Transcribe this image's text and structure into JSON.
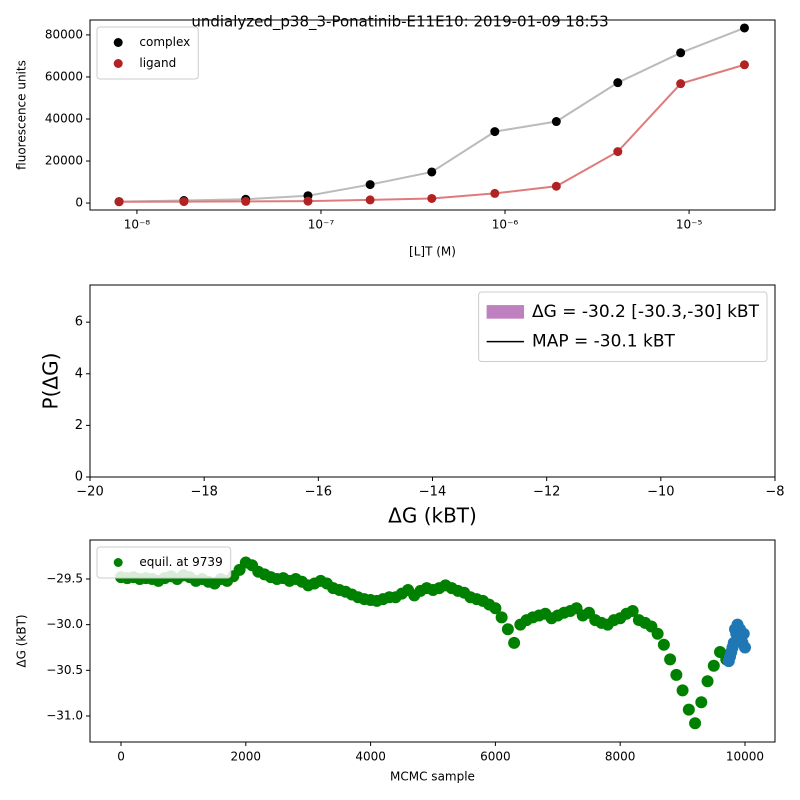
{
  "chart_data": [
    {
      "type": "line",
      "title": "undialyzed_p38_3-Ponatinib-E11E10: 2019-01-09 18:53",
      "xlabel": "[L]T (M)",
      "ylabel": "fluorescence units",
      "xscale": "log",
      "x": [
        8e-09,
        1.8e-08,
        3.9e-08,
        8.5e-08,
        1.85e-07,
        4e-07,
        8.8e-07,
        1.9e-06,
        4.1e-06,
        9e-06,
        2e-05
      ],
      "series": [
        {
          "name": "complex",
          "color": "#000000",
          "line_color": "#bbbbbb",
          "values": [
            700,
            1200,
            1800,
            3500,
            8800,
            14800,
            34000,
            38800,
            57300,
            71500,
            83300
          ]
        },
        {
          "name": "ligand",
          "color": "#b22222",
          "line_color": "#e07b7b",
          "values": [
            600,
            700,
            800,
            900,
            1500,
            2200,
            4600,
            8000,
            24500,
            56800,
            65800
          ]
        }
      ],
      "xlim": [
        5.56e-09,
        2.93e-05
      ],
      "xticks": [
        {
          "value": 1e-08,
          "label": "10⁻⁸"
        },
        {
          "value": 1e-07,
          "label": "10⁻⁷"
        },
        {
          "value": 1e-06,
          "label": "10⁻⁶"
        },
        {
          "value": 1e-05,
          "label": "10⁻⁵"
        }
      ],
      "ylim": [
        -3300,
        87100
      ],
      "yticks": [
        0,
        20000,
        40000,
        60000,
        80000
      ],
      "legend": "upper left"
    },
    {
      "type": "histogram",
      "xlabel": "ΔG (kBT)",
      "ylabel": "P(ΔG)",
      "xlim": [
        -20,
        -8
      ],
      "xticks": [
        {
          "value": -20,
          "label": "−20"
        },
        {
          "value": -18,
          "label": "−18"
        },
        {
          "value": -16,
          "label": "−16"
        },
        {
          "value": -14,
          "label": "−14"
        },
        {
          "value": -12,
          "label": "−12"
        },
        {
          "value": -10,
          "label": "−10"
        },
        {
          "value": -8,
          "label": "−8"
        }
      ],
      "ylim": [
        0,
        7.44
      ],
      "yticks": [
        0,
        2,
        4,
        6
      ],
      "legend": "upper right",
      "legend_entries": [
        {
          "label": "ΔG =  -30.2 [-30.3,-30] kBT",
          "color": "#bf80bf",
          "style": "patch"
        },
        {
          "label": "MAP = -30.1 kBT",
          "color": "#000000",
          "style": "line"
        }
      ]
    },
    {
      "type": "scatter",
      "xlabel": "MCMC sample",
      "ylabel": "ΔG (kBT)",
      "series": [
        {
          "name": "equil. at 9739",
          "color": "#008000",
          "x": [
            0,
            100,
            200,
            300,
            400,
            500,
            600,
            700,
            800,
            900,
            1000,
            1100,
            1200,
            1300,
            1400,
            1500,
            1600,
            1700,
            1800,
            1900,
            2000,
            2100,
            2200,
            2300,
            2400,
            2500,
            2600,
            2700,
            2800,
            2900,
            3000,
            3100,
            3200,
            3300,
            3400,
            3500,
            3600,
            3700,
            3800,
            3900,
            4000,
            4100,
            4200,
            4300,
            4400,
            4500,
            4600,
            4700,
            4800,
            4900,
            5000,
            5100,
            5200,
            5300,
            5400,
            5500,
            5600,
            5700,
            5800,
            5900,
            6000,
            6100,
            6200,
            6300,
            6400,
            6500,
            6600,
            6700,
            6800,
            6900,
            7000,
            7100,
            7200,
            7300,
            7400,
            7500,
            7600,
            7700,
            7800,
            7900,
            8000,
            8100,
            8200,
            8300,
            8400,
            8500,
            8600,
            8700,
            8800,
            8900,
            9000,
            9100,
            9200,
            9300,
            9400,
            9500,
            9600,
            9700
          ],
          "values": [
            -29.48,
            -29.49,
            -29.48,
            -29.5,
            -29.49,
            -29.5,
            -29.52,
            -29.49,
            -29.47,
            -29.5,
            -29.46,
            -29.48,
            -29.52,
            -29.5,
            -29.53,
            -29.55,
            -29.5,
            -29.52,
            -29.47,
            -29.4,
            -29.32,
            -29.35,
            -29.42,
            -29.45,
            -29.48,
            -29.5,
            -29.49,
            -29.52,
            -29.5,
            -29.53,
            -29.57,
            -29.55,
            -29.52,
            -29.55,
            -29.6,
            -29.62,
            -29.64,
            -29.67,
            -29.7,
            -29.72,
            -29.73,
            -29.74,
            -29.72,
            -29.7,
            -29.7,
            -29.66,
            -29.62,
            -29.68,
            -29.63,
            -29.6,
            -29.62,
            -29.6,
            -29.57,
            -29.6,
            -29.63,
            -29.65,
            -29.7,
            -29.72,
            -29.74,
            -29.78,
            -29.82,
            -29.92,
            -30.05,
            -30.2,
            -30.0,
            -29.95,
            -29.92,
            -29.9,
            -29.88,
            -29.93,
            -29.9,
            -29.87,
            -29.85,
            -29.82,
            -29.9,
            -29.87,
            -29.95,
            -29.98,
            -30.0,
            -29.95,
            -29.93,
            -29.88,
            -29.85,
            -29.95,
            -29.98,
            -30.02,
            -30.1,
            -30.22,
            -30.38,
            -30.55,
            -30.72,
            -30.93,
            -31.08,
            -30.85,
            -30.62,
            -30.45,
            -30.3,
            -30.38
          ]
        },
        {
          "color": "#1f77b4",
          "x": [
            9740,
            9760,
            9780,
            9800,
            9820,
            9840,
            9860,
            9880,
            9900,
            9920,
            9940,
            9960,
            9980,
            10000
          ],
          "values": [
            -30.4,
            -30.35,
            -30.3,
            -30.25,
            -30.2,
            -30.05,
            -30.1,
            -30.0,
            -30.15,
            -30.05,
            -30.1,
            -30.2,
            -30.1,
            -30.25
          ]
        }
      ],
      "xlim": [
        -497,
        10481
      ],
      "xticks": [
        0,
        2000,
        4000,
        6000,
        8000,
        10000
      ],
      "ylim": [
        -31.285,
        -29.073
      ],
      "yticks": [
        {
          "value": -29.5,
          "label": "−29.5"
        },
        {
          "value": -30,
          "label": "−30.0"
        },
        {
          "value": -30.5,
          "label": "−30.5"
        },
        {
          "value": -31,
          "label": "−31.0"
        }
      ],
      "legend": "upper left"
    }
  ]
}
